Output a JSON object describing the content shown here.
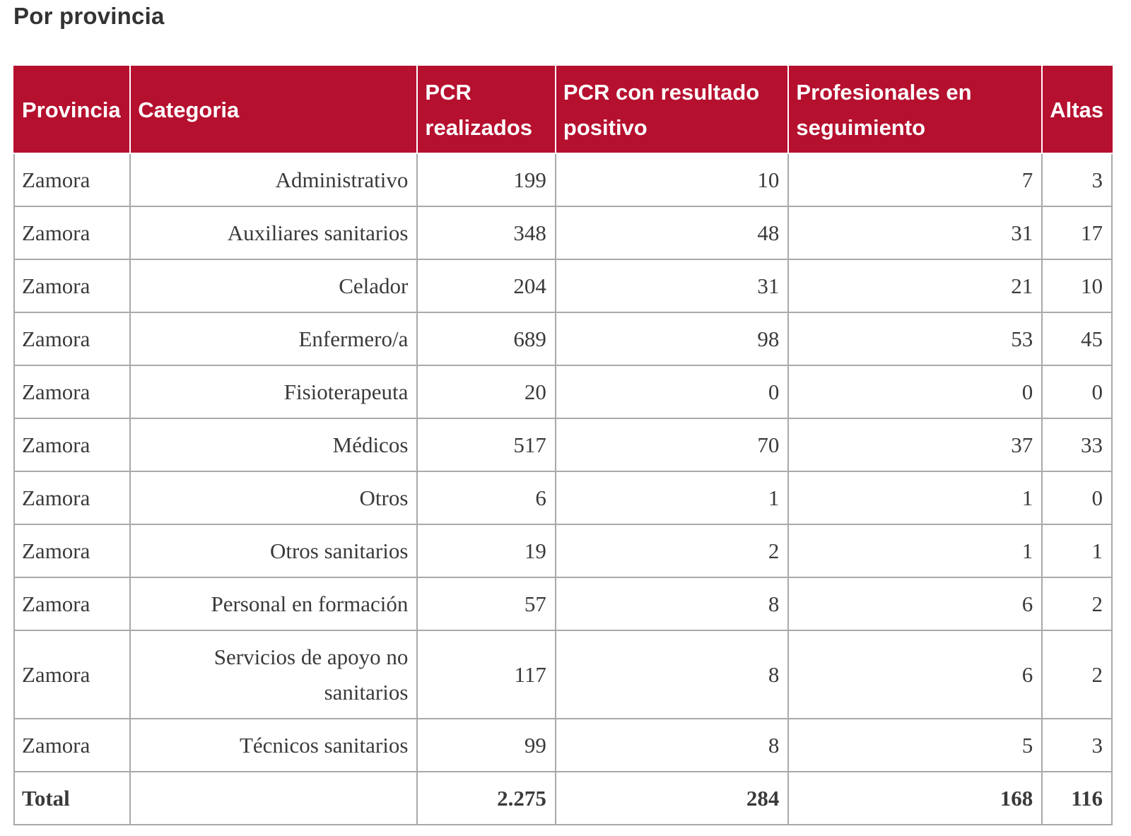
{
  "title": "Por provincia",
  "colors": {
    "header_bg": "#b6102f",
    "header_text": "#ffffff",
    "border": "#a9a9a9",
    "body_text": "#3a3a3a"
  },
  "table": {
    "headers": {
      "provincia": "Provincia",
      "categoria": "Categoria",
      "pcr_realizados": "PCR realizados",
      "pcr_positivo": "PCR con resultado positivo",
      "seguimiento": "Profesionales en seguimiento",
      "altas": "Altas"
    },
    "rows": [
      {
        "provincia": "Zamora",
        "categoria": "Administrativo",
        "pcr_realizados": "199",
        "pcr_positivo": "10",
        "seguimiento": "7",
        "altas": "3"
      },
      {
        "provincia": "Zamora",
        "categoria": "Auxiliares sanitarios",
        "pcr_realizados": "348",
        "pcr_positivo": "48",
        "seguimiento": "31",
        "altas": "17"
      },
      {
        "provincia": "Zamora",
        "categoria": "Celador",
        "pcr_realizados": "204",
        "pcr_positivo": "31",
        "seguimiento": "21",
        "altas": "10"
      },
      {
        "provincia": "Zamora",
        "categoria": "Enfermero/a",
        "pcr_realizados": "689",
        "pcr_positivo": "98",
        "seguimiento": "53",
        "altas": "45"
      },
      {
        "provincia": "Zamora",
        "categoria": "Fisioterapeuta",
        "pcr_realizados": "20",
        "pcr_positivo": "0",
        "seguimiento": "0",
        "altas": "0"
      },
      {
        "provincia": "Zamora",
        "categoria": "Médicos",
        "pcr_realizados": "517",
        "pcr_positivo": "70",
        "seguimiento": "37",
        "altas": "33"
      },
      {
        "provincia": "Zamora",
        "categoria": "Otros",
        "pcr_realizados": "6",
        "pcr_positivo": "1",
        "seguimiento": "1",
        "altas": "0"
      },
      {
        "provincia": "Zamora",
        "categoria": "Otros sanitarios",
        "pcr_realizados": "19",
        "pcr_positivo": "2",
        "seguimiento": "1",
        "altas": "1"
      },
      {
        "provincia": "Zamora",
        "categoria": "Personal en formación",
        "pcr_realizados": "57",
        "pcr_positivo": "8",
        "seguimiento": "6",
        "altas": "2"
      },
      {
        "provincia": "Zamora",
        "categoria": "Servicios de apoyo no sanitarios",
        "pcr_realizados": "117",
        "pcr_positivo": "8",
        "seguimiento": "6",
        "altas": "2"
      },
      {
        "provincia": "Zamora",
        "categoria": "Técnicos sanitarios",
        "pcr_realizados": "99",
        "pcr_positivo": "8",
        "seguimiento": "5",
        "altas": "3"
      }
    ],
    "total": {
      "label": "Total",
      "categoria": "",
      "pcr_realizados": "2.275",
      "pcr_positivo": "284",
      "seguimiento": "168",
      "altas": "116"
    }
  }
}
